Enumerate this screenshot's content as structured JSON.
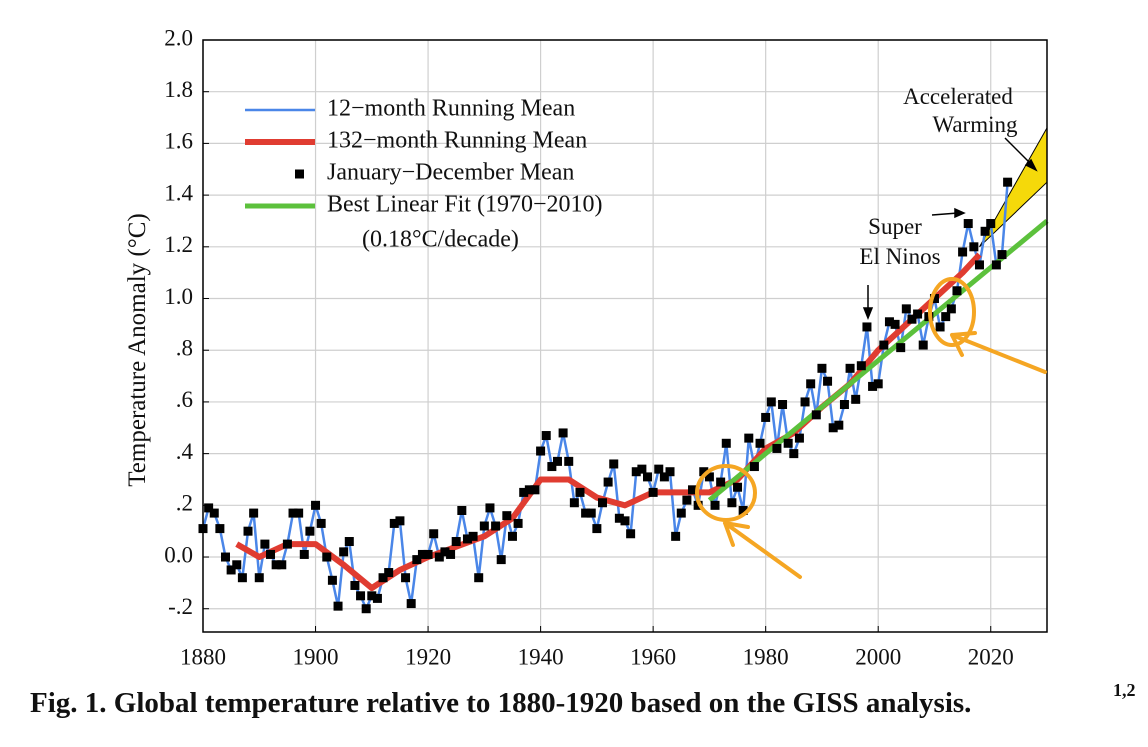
{
  "chart_data": {
    "type": "line",
    "caption": "Fig. 1. Global temperature relative to 1880-1920 based on the GISS analysis.",
    "caption_refs": "1,2",
    "y_label": "Temperature Anomaly (°C)",
    "xlim": [
      1880,
      2030
    ],
    "xticks": [
      1880,
      1900,
      1920,
      1940,
      1960,
      1980,
      2000,
      2020
    ],
    "ylim": [
      -0.29,
      2.0
    ],
    "yticks": [
      {
        "value": -0.2,
        "label": "-.2"
      },
      {
        "value": 0,
        "label": "0.0"
      },
      {
        "value": 0.2,
        "label": ".2"
      },
      {
        "value": 0.4,
        "label": ".4"
      },
      {
        "value": 0.6,
        "label": ".6"
      },
      {
        "value": 0.8,
        "label": ".8"
      },
      {
        "value": 1,
        "label": "1.0"
      },
      1.2,
      1.4,
      1.6,
      1.8,
      {
        "value": 2,
        "label": "2.0"
      }
    ],
    "grid": true,
    "legend": "top-left",
    "legend_note": "(0.18°C/decade)",
    "x": [
      1880,
      1881,
      1882,
      1883,
      1884,
      1885,
      1886,
      1887,
      1888,
      1889,
      1890,
      1891,
      1892,
      1893,
      1894,
      1895,
      1896,
      1897,
      1898,
      1899,
      1900,
      1901,
      1902,
      1903,
      1904,
      1905,
      1906,
      1907,
      1908,
      1909,
      1910,
      1911,
      1912,
      1913,
      1914,
      1915,
      1916,
      1917,
      1918,
      1919,
      1920,
      1921,
      1922,
      1923,
      1924,
      1925,
      1926,
      1927,
      1928,
      1929,
      1930,
      1931,
      1932,
      1933,
      1934,
      1935,
      1936,
      1937,
      1938,
      1939,
      1940,
      1941,
      1942,
      1943,
      1944,
      1945,
      1946,
      1947,
      1948,
      1949,
      1950,
      1951,
      1952,
      1953,
      1954,
      1955,
      1956,
      1957,
      1958,
      1959,
      1960,
      1961,
      1962,
      1963,
      1964,
      1965,
      1966,
      1967,
      1968,
      1969,
      1970,
      1971,
      1972,
      1973,
      1974,
      1975,
      1976,
      1977,
      1978,
      1979,
      1980,
      1981,
      1982,
      1983,
      1984,
      1985,
      1986,
      1987,
      1988,
      1989,
      1990,
      1991,
      1992,
      1993,
      1994,
      1995,
      1996,
      1997,
      1998,
      1999,
      2000,
      2001,
      2002,
      2003,
      2004,
      2005,
      2006,
      2007,
      2008,
      2009,
      2010,
      2011,
      2012,
      2013,
      2014,
      2015,
      2016,
      2017,
      2018,
      2019,
      2020,
      2021,
      2022,
      2023
    ],
    "series": [
      {
        "name": "12−month Running Mean",
        "type": "line",
        "color": "#4a86e8",
        "values": [
          0.11,
          0.19,
          0.17,
          0.11,
          0.0,
          -0.05,
          -0.03,
          -0.08,
          0.1,
          0.17,
          -0.08,
          0.05,
          0.01,
          -0.03,
          -0.03,
          0.05,
          0.17,
          0.17,
          0.01,
          0.1,
          0.2,
          0.13,
          0.0,
          -0.09,
          -0.19,
          0.02,
          0.06,
          -0.11,
          -0.15,
          -0.2,
          -0.15,
          -0.16,
          -0.08,
          -0.06,
          0.13,
          0.14,
          -0.08,
          -0.18,
          -0.01,
          0.01,
          0.01,
          0.09,
          0.0,
          0.02,
          0.01,
          0.06,
          0.18,
          0.07,
          0.08,
          -0.08,
          0.12,
          0.19,
          0.12,
          -0.01,
          0.16,
          0.08,
          0.13,
          0.25,
          0.26,
          0.26,
          0.41,
          0.47,
          0.35,
          0.37,
          0.48,
          0.37,
          0.21,
          0.25,
          0.17,
          0.17,
          0.11,
          0.21,
          0.29,
          0.36,
          0.15,
          0.14,
          0.09,
          0.33,
          0.34,
          0.31,
          0.25,
          0.34,
          0.31,
          0.33,
          0.08,
          0.17,
          0.22,
          0.26,
          0.2,
          0.33,
          0.31,
          0.2,
          0.29,
          0.44,
          0.21,
          0.27,
          0.18,
          0.46,
          0.35,
          0.44,
          0.54,
          0.6,
          0.42,
          0.59,
          0.44,
          0.4,
          0.46,
          0.6,
          0.67,
          0.55,
          0.73,
          0.68,
          0.5,
          0.51,
          0.59,
          0.73,
          0.61,
          0.74,
          0.89,
          0.66,
          0.67,
          0.82,
          0.91,
          0.9,
          0.81,
          0.96,
          0.92,
          0.94,
          0.82,
          0.93,
          1.0,
          0.89,
          0.93,
          0.96,
          1.03,
          1.18,
          1.29,
          1.2,
          1.13,
          1.26,
          1.29,
          1.13,
          1.17,
          1.45
        ]
      },
      {
        "name": "132−month Running Mean",
        "type": "line",
        "color": "#e03c31",
        "x": [
          1886,
          1890,
          1895,
          1900,
          1905,
          1910,
          1915,
          1920,
          1925,
          1930,
          1935,
          1940,
          1945,
          1950,
          1955,
          1960,
          1965,
          1970,
          1975,
          1980,
          1985,
          1990,
          1995,
          2000,
          2005,
          2010,
          2015,
          2018
        ],
        "values": [
          0.05,
          0.0,
          0.05,
          0.05,
          -0.03,
          -0.12,
          -0.05,
          0.0,
          0.04,
          0.08,
          0.15,
          0.3,
          0.3,
          0.23,
          0.2,
          0.25,
          0.25,
          0.25,
          0.3,
          0.42,
          0.48,
          0.58,
          0.67,
          0.8,
          0.9,
          1.0,
          1.1,
          1.17
        ]
      },
      {
        "name": "January−December Mean",
        "type": "scatter",
        "color": "#000000",
        "values": [
          0.11,
          0.19,
          0.17,
          0.11,
          0.0,
          -0.05,
          -0.03,
          -0.08,
          0.1,
          0.17,
          -0.08,
          0.05,
          0.01,
          -0.03,
          -0.03,
          0.05,
          0.17,
          0.17,
          0.01,
          0.1,
          0.2,
          0.13,
          0.0,
          -0.09,
          -0.19,
          0.02,
          0.06,
          -0.11,
          -0.15,
          -0.2,
          -0.15,
          -0.16,
          -0.08,
          -0.06,
          0.13,
          0.14,
          -0.08,
          -0.18,
          -0.01,
          0.01,
          0.01,
          0.09,
          0.0,
          0.02,
          0.01,
          0.06,
          0.18,
          0.07,
          0.08,
          -0.08,
          0.12,
          0.19,
          0.12,
          -0.01,
          0.16,
          0.08,
          0.13,
          0.25,
          0.26,
          0.26,
          0.41,
          0.47,
          0.35,
          0.37,
          0.48,
          0.37,
          0.21,
          0.25,
          0.17,
          0.17,
          0.11,
          0.21,
          0.29,
          0.36,
          0.15,
          0.14,
          0.09,
          0.33,
          0.34,
          0.31,
          0.25,
          0.34,
          0.31,
          0.33,
          0.08,
          0.17,
          0.22,
          0.26,
          0.2,
          0.33,
          0.31,
          0.2,
          0.29,
          0.44,
          0.21,
          0.27,
          0.18,
          0.46,
          0.35,
          0.44,
          0.54,
          0.6,
          0.42,
          0.59,
          0.44,
          0.4,
          0.46,
          0.6,
          0.67,
          0.55,
          0.73,
          0.68,
          0.5,
          0.51,
          0.59,
          0.73,
          0.61,
          0.74,
          0.89,
          0.66,
          0.67,
          0.82,
          0.91,
          0.9,
          0.81,
          0.96,
          0.92,
          0.94,
          0.82,
          0.93,
          1.0,
          0.89,
          0.93,
          0.96,
          1.03,
          1.18,
          1.29,
          1.2,
          1.13,
          1.26,
          1.29,
          1.13,
          1.17,
          1.45
        ]
      },
      {
        "name": "Best Linear Fit (1970−2010)",
        "type": "line",
        "color": "#5cc13c",
        "x": [
          1970,
          2030
        ],
        "values": [
          0.22,
          1.3
        ]
      }
    ],
    "band": {
      "name": "Accelerated Warming",
      "color": "#f5d90a",
      "x": [
        2018,
        2030
      ],
      "low": [
        1.2,
        1.45
      ],
      "high": [
        1.2,
        1.66
      ]
    },
    "annotations": [
      {
        "lines": [
          "Accelerated",
          "Warming"
        ]
      },
      {
        "lines": [
          "Super",
          "El Ninos"
        ]
      }
    ]
  }
}
